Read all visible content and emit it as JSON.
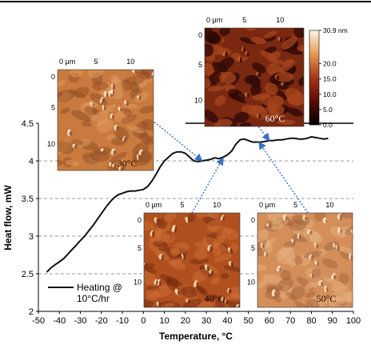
{
  "chart_data": {
    "type": "line",
    "title": "",
    "xlabel": "Temperature, °C",
    "ylabel": "Heat flow, mW",
    "xlim": [
      -50,
      100
    ],
    "ylim": [
      2,
      4.5
    ],
    "x_ticks": [
      "-50",
      "-40",
      "-30",
      "-20",
      "-10",
      "0",
      "10",
      "20",
      "30",
      "40",
      "50",
      "60",
      "70",
      "80",
      "90",
      "100"
    ],
    "y_ticks": [
      "2",
      "2.5",
      "3",
      "3.5",
      "4",
      "4.5"
    ],
    "gridlines_y": [
      2.5,
      3,
      3.5,
      4
    ],
    "grid": "dashed horizontal",
    "legend": {
      "label_line1": "Heating @",
      "label_line2": "10°C/hr",
      "placement": "bottom-left"
    },
    "series": [
      {
        "color": "#111111",
        "x": [
          -46,
          -44,
          -42,
          -40,
          -38,
          -36,
          -34,
          -32,
          -30,
          -28,
          -26,
          -24,
          -22,
          -20,
          -18,
          -16,
          -14,
          -12,
          -10,
          -8,
          -6,
          -4,
          -2,
          0,
          2,
          4,
          6,
          8,
          10,
          12,
          14,
          16,
          18,
          20,
          22,
          24,
          26,
          28,
          30,
          32,
          34,
          36,
          38,
          40,
          42,
          44,
          46,
          48,
          50,
          52,
          54,
          56,
          58,
          60,
          62,
          64,
          66,
          68,
          70,
          72,
          74,
          76,
          78,
          80,
          82,
          84,
          86,
          88
        ],
        "y": [
          2.52,
          2.58,
          2.62,
          2.66,
          2.7,
          2.76,
          2.82,
          2.88,
          2.94,
          3.0,
          3.07,
          3.14,
          3.22,
          3.3,
          3.38,
          3.45,
          3.51,
          3.55,
          3.57,
          3.59,
          3.6,
          3.6,
          3.61,
          3.62,
          3.66,
          3.73,
          3.82,
          3.92,
          4.0,
          4.05,
          4.1,
          4.12,
          4.12,
          4.1,
          4.05,
          4.0,
          3.99,
          4.0,
          4.01,
          4.02,
          4.04,
          4.03,
          4.05,
          4.08,
          4.13,
          4.22,
          4.28,
          4.29,
          4.27,
          4.25,
          4.25,
          4.25,
          4.26,
          4.27,
          4.27,
          4.28,
          4.28,
          4.29,
          4.3,
          4.3,
          4.29,
          4.29,
          4.3,
          4.32,
          4.31,
          4.3,
          4.29,
          4.3
        ]
      }
    ],
    "afm_insets": [
      {
        "label": "30°C",
        "x_ticks": [
          "0 μm",
          "5",
          "10"
        ],
        "y_ticks": [
          "0",
          "5",
          "10"
        ],
        "colors": {
          "base": "#c97a3e",
          "light": "#e4a064",
          "dark": "#8e4a22",
          "bright": "#fbe9c8"
        },
        "arrow_to": {
          "temperature": 28,
          "heat_flow": 4.0
        }
      },
      {
        "label": "60°C",
        "x_ticks": [
          "0 μm",
          "5",
          "10"
        ],
        "y_ticks": [
          "0",
          "5",
          "10"
        ],
        "colors": {
          "base": "#7a2810",
          "light": "#a6441c",
          "dark": "#2e0805",
          "bright": "#c9683a"
        },
        "arrow_to": {
          "temperature": 60,
          "heat_flow": 4.27
        }
      },
      {
        "label": "40°C",
        "x_ticks": [
          "0 μm",
          "5",
          "10"
        ],
        "y_ticks": [
          "0",
          "5",
          "10"
        ],
        "colors": {
          "base": "#b0501f",
          "light": "#d27438",
          "dark": "#6e250a",
          "bright": "#f6dcae"
        },
        "arrow_to": {
          "temperature": 38,
          "heat_flow": 4.04
        }
      },
      {
        "label": "50°C",
        "x_ticks": [
          "0 μm",
          "5",
          "10"
        ],
        "y_ticks": [
          "0",
          "5",
          "10"
        ],
        "colors": {
          "base": "#d48e5a",
          "light": "#e8b586",
          "dark": "#a0603a",
          "bright": "#f8e6c8"
        },
        "arrow_to": {
          "temperature": 55,
          "heat_flow": 4.25
        }
      }
    ],
    "colorbar": {
      "ticks": [
        "30.9 nm",
        "20.0",
        "15.0",
        "10.0",
        "5.0",
        "0.0"
      ],
      "tick_values": [
        30.9,
        20,
        15,
        10,
        5,
        0
      ],
      "range": [
        0,
        30.9
      ]
    }
  }
}
